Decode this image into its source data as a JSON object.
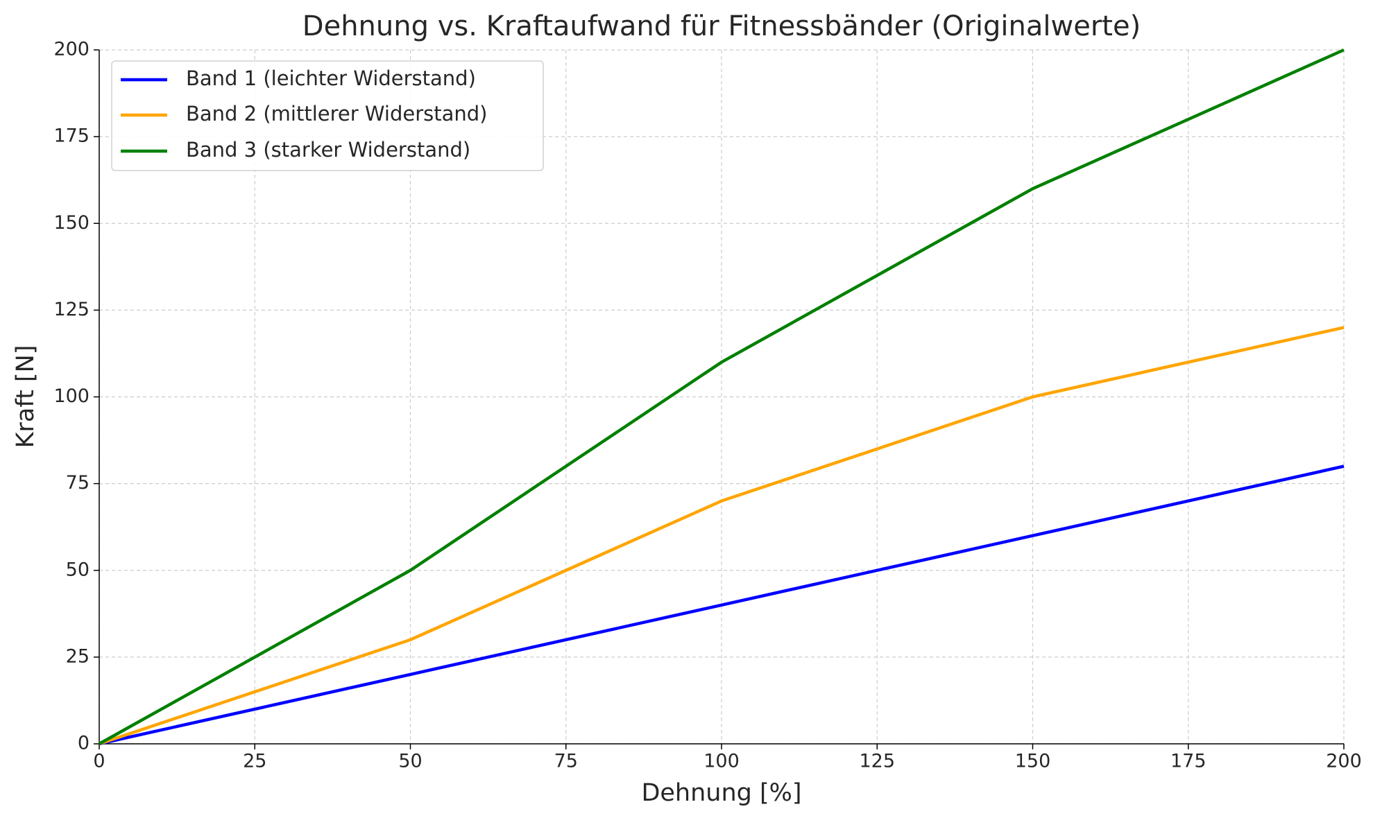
{
  "chart_data": {
    "type": "line",
    "title": "Dehnung vs. Kraftaufwand für Fitnessbänder (Originalwerte)",
    "x_label": "Dehnung [%]",
    "y_label": "Kraft [N]",
    "x": [
      0,
      50,
      100,
      150,
      200
    ],
    "series": [
      {
        "name": "Band 1 (leichter Widerstand)",
        "color": "#0000ff",
        "values": [
          0,
          20,
          40,
          60,
          80
        ]
      },
      {
        "name": "Band 2 (mittlerer Widerstand)",
        "color": "#ffa500",
        "values": [
          0,
          30,
          70,
          100,
          120
        ]
      },
      {
        "name": "Band 3 (starker Widerstand)",
        "color": "#008000",
        "values": [
          0,
          50,
          110,
          160,
          200
        ]
      }
    ],
    "xlim": [
      0,
      200
    ],
    "xticks": [
      0,
      25,
      50,
      75,
      100,
      125,
      150,
      175,
      200
    ],
    "ylim": [
      0,
      200
    ],
    "yticks": [
      0,
      25,
      50,
      75,
      100,
      125,
      150,
      175,
      200
    ],
    "grid": true,
    "legend": "upper left"
  }
}
